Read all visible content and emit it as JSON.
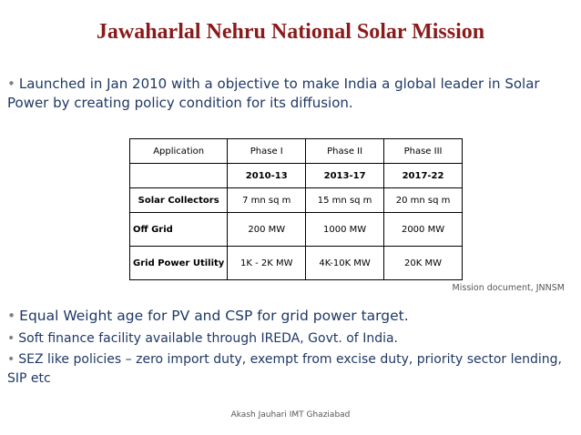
{
  "title": "Jawaharlal Nehru National Solar Mission",
  "bullets": {
    "intro": "Launched in Jan 2010 with a objective to make India a global leader in Solar Power by creating policy condition for its diffusion.",
    "equal_weight": "Equal Weight age for PV and CSP for grid power target.",
    "soft_finance": "Soft finance facility available through IREDA, Govt. of India.",
    "sez": "SEZ like policies – zero import duty, exempt from excise duty, priority sector lending, SIP etc"
  },
  "table": {
    "headers": [
      "Application",
      "Phase I",
      "Phase II",
      "Phase III"
    ],
    "years": [
      "",
      "2010-13",
      "2013-17",
      "2017-22"
    ],
    "rows": [
      {
        "label": "Solar Collectors",
        "values": [
          "7 mn sq m",
          "15 mn sq m",
          "20 mn sq m"
        ]
      },
      {
        "label": "Off Grid",
        "values": [
          "200 MW",
          "1000 MW",
          "2000 MW"
        ]
      },
      {
        "label": "Grid Power Utility",
        "values": [
          "1K - 2K MW",
          "4K-10K MW",
          "20K MW"
        ]
      }
    ]
  },
  "source": "Mission document, JNNSM",
  "footer": "Akash Jauhari IMT Ghaziabad",
  "colors": {
    "title": "#8b1a1a",
    "body_text": "#1f3864",
    "bullet_marker": "#7f7f7f"
  }
}
